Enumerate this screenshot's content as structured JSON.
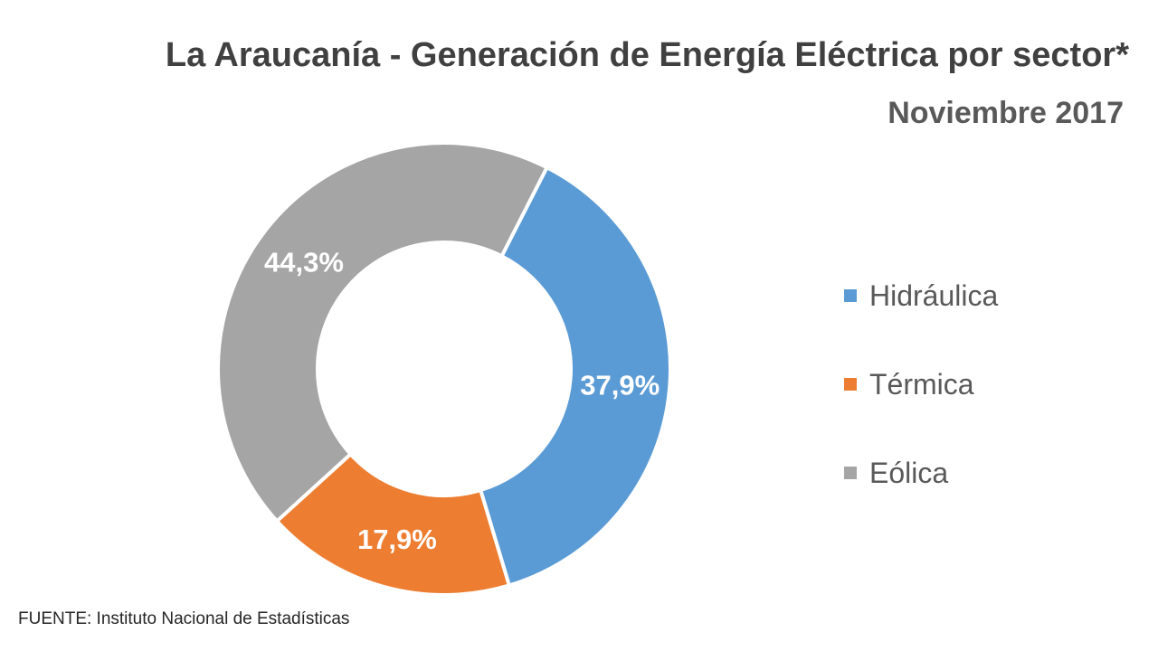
{
  "chart_data": {
    "type": "pie",
    "variant": "donut",
    "title": "La Araucanía - Generación de Energía Eléctrica por sector*",
    "subtitle": "Noviembre 2017",
    "categories": [
      "Hidráulica",
      "Térmica",
      "Eólica"
    ],
    "values": [
      37.9,
      17.9,
      44.3
    ],
    "data_labels": [
      "37,9%",
      "17,9%",
      "44,3%"
    ],
    "colors": [
      "#5B9BD5",
      "#ED7D31",
      "#A5A5A5"
    ],
    "legend_position": "right",
    "source": "FUENTE: Instituto Nacional de Estadísticas"
  }
}
